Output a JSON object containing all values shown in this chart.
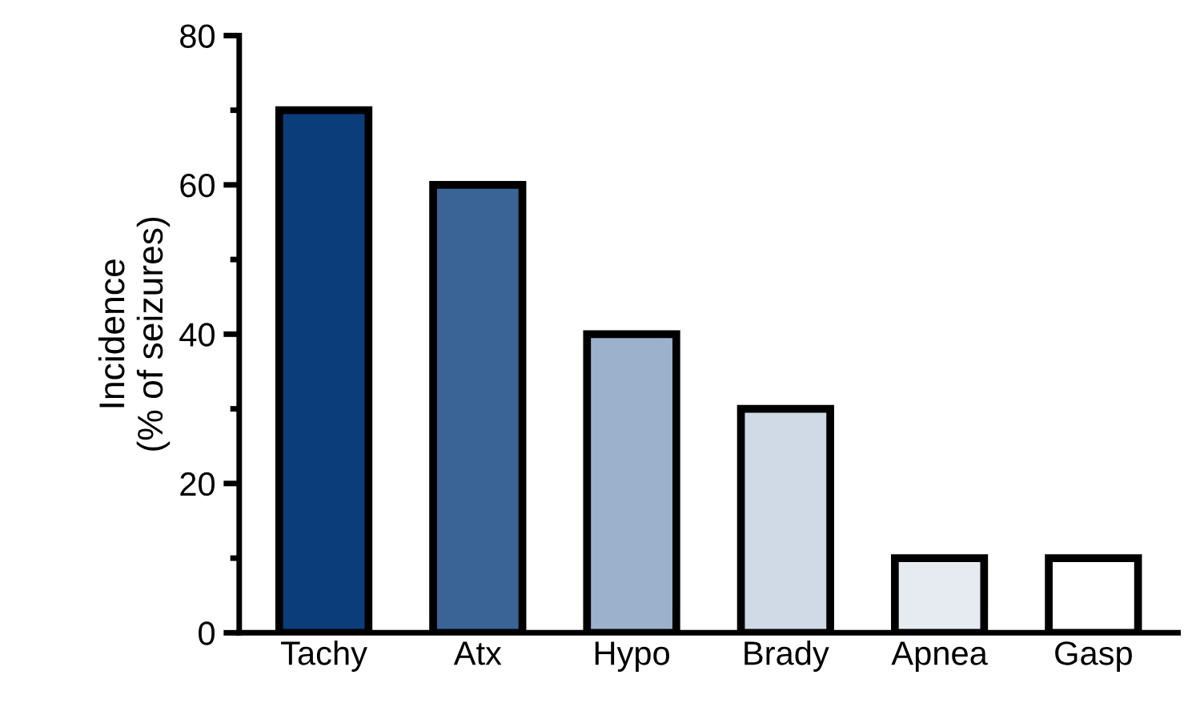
{
  "chart_data": {
    "type": "bar",
    "ylabel": "Incidence\n(% of seizures)",
    "categories": [
      "Tachy",
      "Atx",
      "Hypo",
      "Brady",
      "Apnea",
      "Gasp"
    ],
    "values": [
      70,
      60,
      40,
      30,
      10,
      10
    ],
    "colors": [
      "#0b3d7a",
      "#3a6496",
      "#9cb2cc",
      "#cfdae6",
      "#e6ebf2",
      "#ffffff"
    ],
    "ylim": [
      0,
      80
    ],
    "yticks": [
      0,
      {
        "value": 10,
        "label": null
      },
      20,
      {
        "value": 30,
        "label": null
      },
      40,
      {
        "value": 50,
        "label": null
      },
      60,
      {
        "value": 70,
        "label": null
      },
      80
    ],
    "grid": false,
    "legend": false
  }
}
